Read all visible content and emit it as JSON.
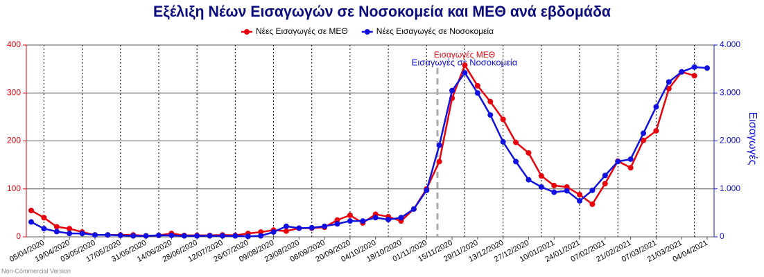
{
  "chart_data": {
    "type": "line",
    "title": "Εξέλιξη Νέων Εισαγωγών σε Νοσοκομεία και ΜΕΘ ανά εβδομάδα",
    "categories": [
      null,
      "05/04/2020",
      null,
      "19/04/2020",
      null,
      "03/05/2020",
      null,
      "17/05/2020",
      null,
      "31/05/2020",
      null,
      "14/06/2020",
      null,
      "28/06/2020",
      null,
      "12/07/2020",
      null,
      "26/07/2020",
      null,
      "09/08/2020",
      null,
      "23/08/2020",
      null,
      "06/09/2020",
      null,
      "20/09/2020",
      null,
      "04/10/2020",
      null,
      "18/10/2020",
      null,
      "01/11/2020",
      null,
      "15/11/2020",
      null,
      "29/11/2020",
      null,
      "13/12/2020",
      null,
      "27/12/2020",
      null,
      "10/01/2021",
      null,
      "24/01/2021",
      null,
      "07/02/2021",
      null,
      "21/02/2021",
      null,
      "07/03/2021",
      null,
      "21/03/2021",
      null,
      "04/04/2021"
    ],
    "series": [
      {
        "name": "Νέες Εισαγωγές σε ΜΕΘ",
        "color": "#e8000b",
        "axis": "y",
        "values": [
          55,
          40,
          21,
          17,
          10,
          4,
          4,
          4,
          4,
          2,
          3,
          7,
          3,
          3,
          3,
          4,
          3,
          7,
          10,
          14,
          12,
          18,
          18,
          20,
          35,
          45,
          29,
          47,
          42,
          33,
          58,
          100,
          157,
          289,
          358,
          315,
          282,
          245,
          197,
          175,
          127,
          107,
          104,
          88,
          68,
          111,
          158,
          144,
          201,
          221,
          309,
          344,
          336,
          null
        ]
      },
      {
        "name": "Νέες Εισαγωγές σε Νοσοκομεία",
        "color": "#1010e0",
        "axis": "y2",
        "values": [
          310,
          170,
          110,
          70,
          70,
          40,
          40,
          30,
          20,
          20,
          30,
          30,
          20,
          20,
          20,
          20,
          20,
          10,
          20,
          100,
          220,
          180,
          190,
          220,
          270,
          330,
          330,
          400,
          360,
          400,
          580,
          970,
          1910,
          3050,
          3420,
          3000,
          2540,
          1980,
          1570,
          1190,
          1040,
          930,
          960,
          750,
          970,
          1280,
          1570,
          1620,
          2160,
          2710,
          3230,
          3440,
          3540,
          3520
        ]
      }
    ],
    "ylim": [
      0,
      400
    ],
    "yticks": [
      0,
      100,
      200,
      300,
      400
    ],
    "y2lim": [
      0,
      4000
    ],
    "y2ticks": [
      {
        "value": 0,
        "label": "0"
      },
      {
        "value": 1000,
        "label": "1.000"
      },
      {
        "value": 2000,
        "label": "2.000"
      },
      {
        "value": 3000,
        "label": "3.000"
      },
      {
        "value": 4000,
        "label": "4.000"
      }
    ],
    "y2label": "Εισαγωγές",
    "annotations": [
      "Εισαγωγές ΜΕΘ",
      "Εισαγωγές σε Νοσοκομεία"
    ],
    "watermark": "Non-Commercial Version",
    "grid": true
  }
}
